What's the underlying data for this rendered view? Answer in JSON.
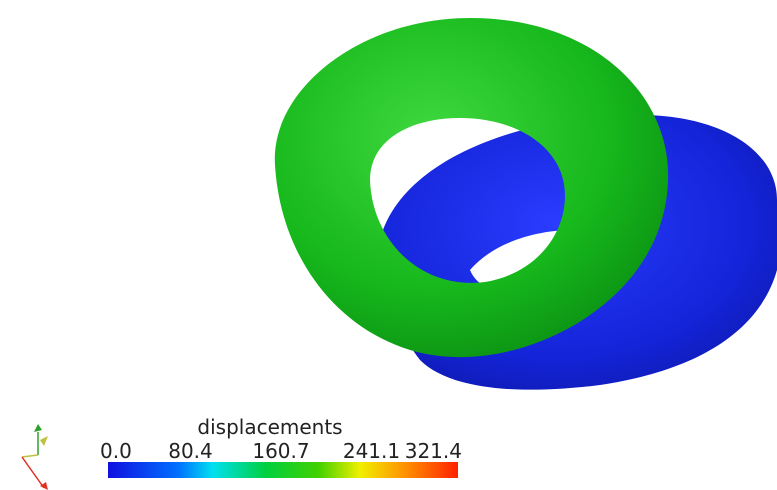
{
  "colorbar": {
    "title": "displacements",
    "labels": [
      "0.0",
      "80.4",
      "160.7",
      "241.1",
      "321.4"
    ]
  }
}
